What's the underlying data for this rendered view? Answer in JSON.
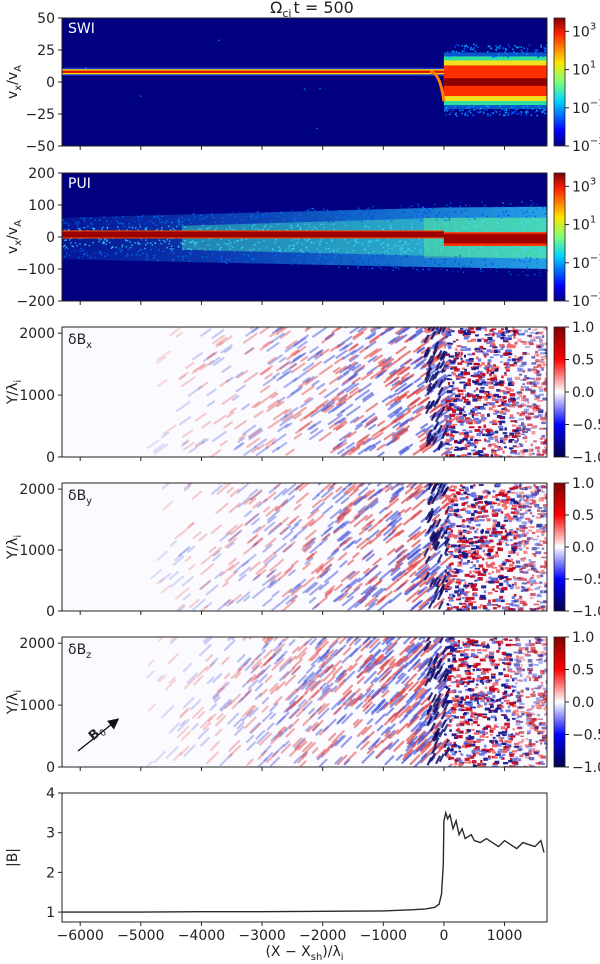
{
  "figure_title": "Ω_ci t = 500",
  "title_main": "Ω",
  "title_sub": "ci",
  "title_rest": "t = 500",
  "colors": {
    "bg": "#000080",
    "line": "#2a2a2a",
    "red": "#b40426",
    "blue": "#1a1a9a"
  },
  "chart_data": [
    {
      "type": "heatmap",
      "panel_label": "SWI",
      "ylabel": "v_x/v_A",
      "ylabel_main": "v",
      "ylabel_sub": "x",
      "ylabel_rest": "/v",
      "ylabel_sub2": "A",
      "ylim": [
        -50,
        50
      ],
      "yticks": [
        50,
        25,
        0,
        -25,
        -50
      ],
      "xlim": [
        -6300,
        1700
      ],
      "colorscale": "jet-log",
      "colorbar_range": [
        0.001,
        5000
      ],
      "colorbar_ticks": [
        "10^3",
        "10^1",
        "10^-1",
        "10^-3"
      ],
      "colorbar_tick_values": [
        1000,
        10,
        0.1,
        0.001
      ],
      "upstream_beam_vx": 8,
      "downstream_spread_vx": [
        -18,
        20
      ]
    },
    {
      "type": "heatmap",
      "panel_label": "PUI",
      "ylabel": "v_x/v_A",
      "ylim": [
        -200,
        200
      ],
      "yticks": [
        200,
        100,
        0,
        -100,
        -200
      ],
      "xlim": [
        -6300,
        1700
      ],
      "colorscale": "jet-log",
      "colorbar_range": [
        0.001,
        5000
      ],
      "colorbar_ticks": [
        "10^3",
        "10^1",
        "10^-1",
        "10^-3"
      ],
      "colorbar_tick_values": [
        1000,
        10,
        0.1,
        0.001
      ],
      "upstream_beam_vx": 8,
      "upstream_shell_halfwidth": [
        60,
        90
      ],
      "downstream_spread_vx": [
        -25,
        12
      ]
    },
    {
      "type": "heatmap",
      "panel_label": "δB_x",
      "label_main": "δB",
      "label_sub": "x",
      "ylabel": "Y/λ_i",
      "ylim": [
        0,
        2100
      ],
      "yticks": [
        2000,
        1000,
        0
      ],
      "xlim": [
        -6300,
        1700
      ],
      "colorscale": "seismic",
      "colorbar_range": [
        -1.0,
        1.0
      ],
      "colorbar_ticks": [
        "1.0",
        "0.5",
        "0.0",
        "-0.5",
        "-1.0"
      ]
    },
    {
      "type": "heatmap",
      "panel_label": "δB_y",
      "label_main": "δB",
      "label_sub": "y",
      "ylabel": "Y/λ_i",
      "ylim": [
        0,
        2100
      ],
      "yticks": [
        2000,
        1000,
        0
      ],
      "xlim": [
        -6300,
        1700
      ],
      "colorscale": "seismic",
      "colorbar_range": [
        -1.0,
        1.0
      ],
      "colorbar_ticks": [
        "1.0",
        "0.5",
        "0.0",
        "-0.5",
        "-1.0"
      ]
    },
    {
      "type": "heatmap",
      "panel_label": "δB_z",
      "label_main": "δB",
      "label_sub": "z",
      "ylabel": "Y/λ_i",
      "ylim": [
        0,
        2100
      ],
      "yticks": [
        2000,
        1000,
        0
      ],
      "xlim": [
        -6300,
        1700
      ],
      "colorscale": "seismic",
      "colorbar_range": [
        -1.0,
        1.0
      ],
      "colorbar_ticks": [
        "1.0",
        "0.5",
        "0.0",
        "-0.5",
        "-1.0"
      ],
      "annotation": "B_0",
      "annotation_main": "B",
      "annotation_sub": "0"
    },
    {
      "type": "line",
      "ylabel": "|B|",
      "xlabel": "(X − X_sh)/λ_i",
      "xlabel_main": "(X − X",
      "xlabel_sub": "sh",
      "xlabel_rest": ")/λ",
      "xlabel_sub2": "i",
      "xlim": [
        -6300,
        1700
      ],
      "ylim": [
        0.75,
        4.0
      ],
      "xticks": [
        -6000,
        -5000,
        -4000,
        -3000,
        -2000,
        -1000,
        0,
        1000
      ],
      "yticks": [
        4,
        3,
        2,
        1
      ],
      "x": [
        -6300,
        -5000,
        -4000,
        -3000,
        -2000,
        -1000,
        -500,
        -300,
        -150,
        -80,
        -40,
        -10,
        0,
        30,
        60,
        100,
        150,
        200,
        250,
        300,
        350,
        400,
        450,
        500,
        600,
        700,
        800,
        900,
        1000,
        1100,
        1200,
        1300,
        1400,
        1500,
        1600,
        1650
      ],
      "y": [
        1.0,
        1.0,
        1.01,
        1.01,
        1.02,
        1.03,
        1.06,
        1.08,
        1.12,
        1.2,
        1.45,
        2.2,
        3.3,
        3.5,
        3.35,
        3.45,
        3.1,
        3.3,
        2.95,
        3.1,
        2.85,
        2.9,
        2.95,
        2.8,
        2.75,
        2.85,
        2.75,
        2.65,
        2.8,
        2.7,
        2.6,
        2.75,
        2.7,
        2.65,
        2.8,
        2.5
      ]
    }
  ]
}
